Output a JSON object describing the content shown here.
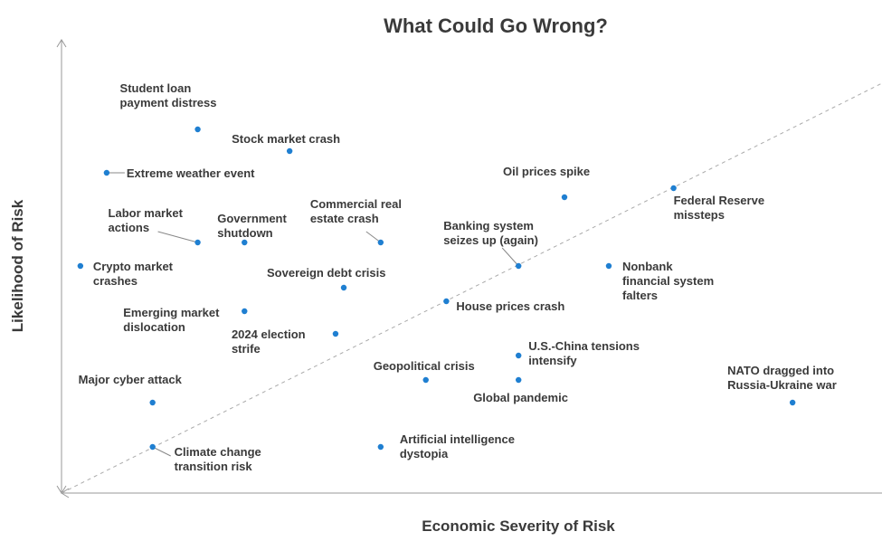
{
  "chart_data": {
    "type": "scatter",
    "title": "What Could Go Wrong?",
    "x_label": "Economic Severity of Risk",
    "y_label": "Likelihood of Risk",
    "color": "#1f7fd1",
    "xlim": [
      0,
      100
    ],
    "ylim": [
      0,
      100
    ],
    "labels": [
      "Student loan payment distress",
      "Stock market crash",
      "Extreme weather event",
      "Oil prices spike",
      "Federal Reserve missteps",
      "Labor market actions",
      "Government shutdown",
      "Commercial real estate crash",
      "Banking system seizes up (again)",
      "Nonbank financial system falters",
      "Crypto market crashes",
      "Sovereign debt crisis",
      "House prices crash",
      "Emerging market dislocation",
      "2024 election strife",
      "U.S.-China tensions intensify",
      "Geopolitical crisis",
      "Global pandemic",
      "Major cyber attack",
      "NATO dragged into Russia-Ukraine war",
      "Climate change transition risk",
      "Artificial intelligence dystopia"
    ],
    "x": [
      16.6,
      27.8,
      5.5,
      61.3,
      74.6,
      16.6,
      22.3,
      38.9,
      55.7,
      66.7,
      2.3,
      34.4,
      46.9,
      22.3,
      33.4,
      55.7,
      44.4,
      55.7,
      11.1,
      89.1,
      11.1,
      38.9
    ],
    "values": [
      80.4,
      75.6,
      70.8,
      65.4,
      67.4,
      55.4,
      55.4,
      55.4,
      50.2,
      50.2,
      50.2,
      45.4,
      42.4,
      40.2,
      35.2,
      30.4,
      25,
      25,
      20,
      20,
      10.2,
      10.2
    ]
  }
}
